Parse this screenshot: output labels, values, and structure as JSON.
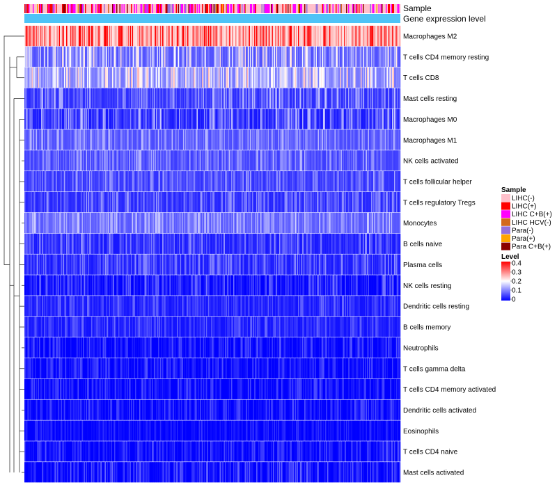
{
  "chart_data": {
    "type": "heatmap",
    "title": "",
    "n_samples": 360,
    "annotations": [
      {
        "name": "Sample",
        "label": "Sample"
      },
      {
        "name": "Gene expression level",
        "label": "Gene expression level"
      }
    ],
    "rows": [
      {
        "label": "Macrophages M2",
        "level": 0.27,
        "spread": 0.09
      },
      {
        "label": "T cells CD4 memory resting",
        "level": 0.1,
        "spread": 0.07
      },
      {
        "label": "T cells CD8",
        "level": 0.13,
        "spread": 0.07
      },
      {
        "label": "Mast cells resting",
        "level": 0.06,
        "spread": 0.05
      },
      {
        "label": "Macrophages M0",
        "level": 0.05,
        "spread": 0.06
      },
      {
        "label": "Macrophages M1",
        "level": 0.08,
        "spread": 0.04
      },
      {
        "label": "NK cells activated",
        "level": 0.07,
        "spread": 0.04
      },
      {
        "label": "T cells follicular helper",
        "level": 0.06,
        "spread": 0.04
      },
      {
        "label": "T cells regulatory  Tregs",
        "level": 0.05,
        "spread": 0.04
      },
      {
        "label": "Monocytes",
        "level": 0.09,
        "spread": 0.04
      },
      {
        "label": "B cells naive",
        "level": 0.04,
        "spread": 0.04
      },
      {
        "label": "Plasma cells",
        "level": 0.04,
        "spread": 0.04
      },
      {
        "label": "NK cells resting",
        "level": 0.02,
        "spread": 0.04
      },
      {
        "label": "Dendritic cells resting",
        "level": 0.03,
        "spread": 0.03
      },
      {
        "label": "B cells memory",
        "level": 0.03,
        "spread": 0.03
      },
      {
        "label": "Neutrophils",
        "level": 0.01,
        "spread": 0.03
      },
      {
        "label": "T cells gamma delta",
        "level": 0.01,
        "spread": 0.03
      },
      {
        "label": "T cells CD4 memory activated",
        "level": 0.01,
        "spread": 0.03
      },
      {
        "label": "Dendritic cells activated",
        "level": 0.01,
        "spread": 0.03
      },
      {
        "label": "Eosinophils",
        "level": 0.005,
        "spread": 0.02
      },
      {
        "label": "T cells CD4 naive",
        "level": 0.01,
        "spread": 0.03
      },
      {
        "label": "Mast cells activated",
        "level": 0.01,
        "spread": 0.04
      }
    ],
    "legend": {
      "sample": {
        "title": "Sample",
        "entries": [
          {
            "label": "LIHC(-)",
            "color": "#FFC0CB"
          },
          {
            "label": "LIHC(+)",
            "color": "#FF0000"
          },
          {
            "label": "LIHC C+B(+)",
            "color": "#FF00FF"
          },
          {
            "label": "LIHC HCV(-)",
            "color": "#D2691E"
          },
          {
            "label": "Para(-)",
            "color": "#9370DB"
          },
          {
            "label": "Para(+)",
            "color": "#FFA500"
          },
          {
            "label": "Para C+B(+)",
            "color": "#8B0000"
          }
        ]
      },
      "level": {
        "title": "Level",
        "ticks": [
          "0.4",
          "0.3",
          "0.2",
          "0.1",
          "0"
        ],
        "range": [
          0,
          0.4
        ],
        "colors": {
          "low": "#0000FF",
          "mid": "#FFFFFF",
          "high": "#FF0000"
        }
      }
    },
    "expression_color": "#4FC3F7"
  }
}
